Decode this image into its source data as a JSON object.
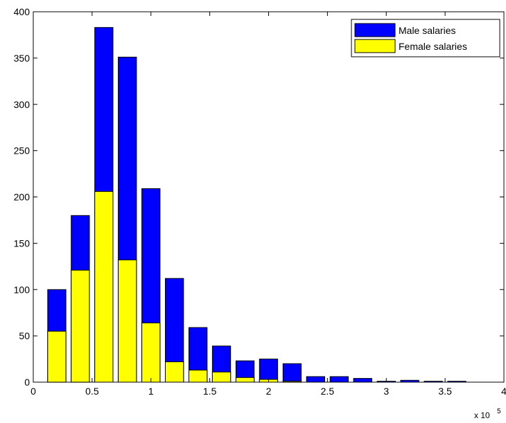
{
  "chart_data": {
    "type": "bar",
    "stacked": false,
    "overlaid": true,
    "x": [
      0.2,
      0.4,
      0.6,
      0.8,
      1.0,
      1.2,
      1.4,
      1.6,
      1.8,
      2.0,
      2.2,
      2.4,
      2.6,
      2.8,
      3.0,
      3.2,
      3.4,
      3.6
    ],
    "series": [
      {
        "name": "Male salaries",
        "color": "#0000ff",
        "values": [
          100,
          180,
          383,
          351,
          209,
          112,
          59,
          39,
          23,
          25,
          20,
          6,
          6,
          4,
          1,
          2,
          1,
          1
        ]
      },
      {
        "name": "Female salaries",
        "color": "#ffff00",
        "values": [
          55,
          121,
          206,
          132,
          64,
          22,
          13,
          11,
          5,
          3,
          1,
          0,
          0,
          0,
          0,
          0,
          0,
          0
        ]
      }
    ],
    "xlim": [
      0,
      4
    ],
    "ylim": [
      0,
      400
    ],
    "xticks": [
      "0",
      "0.5",
      "1",
      "1.5",
      "2",
      "2.5",
      "3",
      "3.5",
      "4"
    ],
    "yticks": [
      "0",
      "50",
      "100",
      "150",
      "200",
      "250",
      "300",
      "350",
      "400"
    ],
    "x_exponent_base": "x 10",
    "x_exponent_power": "5",
    "legend_position": "top-right",
    "grid": false
  }
}
